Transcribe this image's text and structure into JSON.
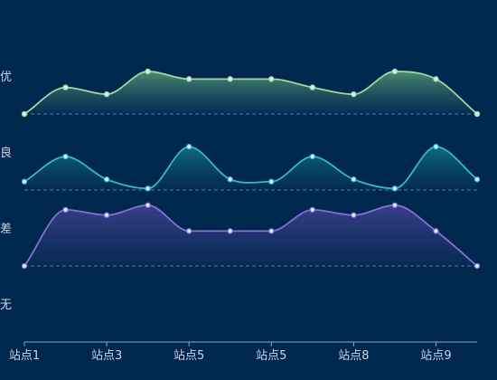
{
  "chart_data": {
    "type": "area",
    "title": "",
    "xlabel": "",
    "ylabel": "",
    "y_categories": [
      "优",
      "良",
      "差",
      "无"
    ],
    "x_labels": [
      "站点1",
      "",
      "站点3",
      "",
      "站点5",
      "",
      "站点5",
      "",
      "站点8",
      "",
      "站点9",
      ""
    ],
    "x": [
      1,
      2,
      3,
      4,
      5,
      6,
      7,
      8,
      9,
      10,
      11,
      12
    ],
    "grid": false,
    "legend": "none",
    "series": [
      {
        "band": "优",
        "color": "#9fd8a0",
        "fill_top": "#4e8f72",
        "fill_bottom": "#0b3358",
        "values": [
          0.0,
          0.35,
          0.26,
          0.56,
          0.46,
          0.46,
          0.46,
          0.35,
          0.26,
          0.56,
          0.46,
          0.0
        ]
      },
      {
        "band": "良",
        "color": "#34b8c8",
        "fill_top": "#0e6f86",
        "fill_bottom": "#062d55",
        "values": [
          0.11,
          0.44,
          0.14,
          0.02,
          0.57,
          0.14,
          0.11,
          0.44,
          0.14,
          0.02,
          0.57,
          0.14
        ]
      },
      {
        "band": "差",
        "color": "#7f72d6",
        "fill_top": "#3f3f8f",
        "fill_bottom": "#0b2e57",
        "values": [
          0.0,
          0.74,
          0.67,
          0.8,
          0.46,
          0.46,
          0.46,
          0.74,
          0.67,
          0.8,
          0.46,
          0.0
        ]
      }
    ]
  }
}
